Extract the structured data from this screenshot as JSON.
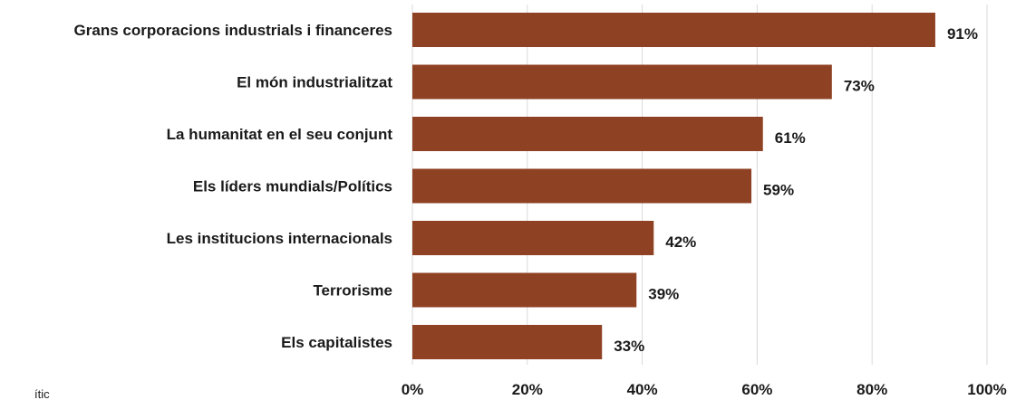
{
  "chart_data": {
    "type": "bar",
    "orientation": "horizontal",
    "categories": [
      "Grans corporacions industrials i financeres",
      "El món industrialitzat",
      "La humanitat en el seu conjunt",
      "Els líders mundials/Polítics",
      "Les institucions internacionals",
      "Terrorisme",
      "Els capitalistes"
    ],
    "values": [
      91,
      73,
      61,
      59,
      42,
      39,
      33
    ],
    "value_labels": [
      "91%",
      "73%",
      "61%",
      "59%",
      "42%",
      "39%",
      "33%"
    ],
    "xlim": [
      0,
      100
    ],
    "x_ticks": [
      0,
      20,
      40,
      60,
      80,
      100
    ],
    "x_tick_labels": [
      "0%",
      "20%",
      "40%",
      "60%",
      "80%",
      "100%"
    ],
    "bar_color": "#8f4123",
    "grid": true,
    "legend": "none"
  },
  "footnote": "ític"
}
